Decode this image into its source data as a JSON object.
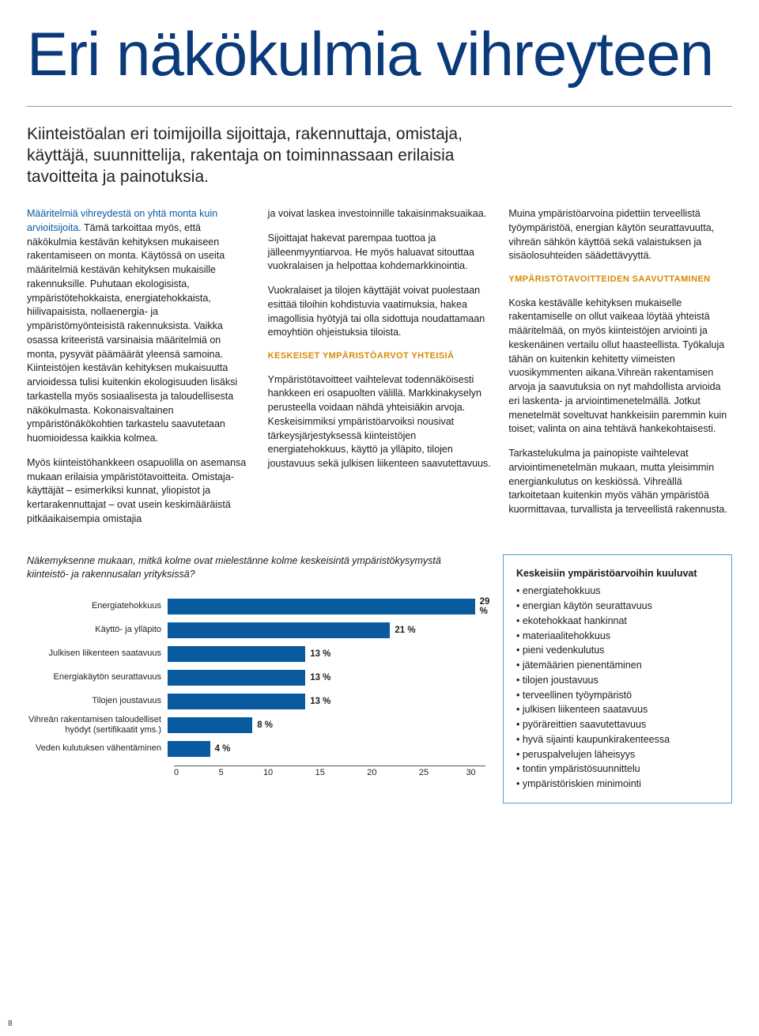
{
  "title": "Eri näkökulmia vihreyteen",
  "lead": "Kiinteistöalan eri toimijoilla sijoittaja, rakennuttaja, omistaja, käyttäjä, suunnittelija, rakentaja on toiminnassaan erilaisia tavoitteita ja painotuksia.",
  "col1": {
    "p1a": "Määritelmiä vihreydestä on yhtä monta kuin arvioitsijoita.",
    "p1b": " Tämä tarkoittaa myös, että näkökulmia kestävän kehityksen mukaiseen rakentamiseen on monta. Käytössä on useita määritelmiä kestävän kehityksen mukaisille rakennuksille. Puhutaan ekologisista, ympäristötehokkaista, energiatehokkaista, hiilivapaisista, nollaenergia- ja ympäristömyönteisistä rakennuksista. Vaikka osassa kriteeristä varsinaisia määritelmiä on monta, pysyvät päämäärät yleensä samoina. Kiinteistöjen kestävän kehityksen mukaisuutta arvioidessa tulisi kuitenkin ekologisuuden lisäksi tarkastella myös sosiaalisesta ja taloudellisesta näkökulmasta. Kokonaisvaltainen ympäristönäkökohtien tarkastelu saavutetaan huomioidessa kaikkia kolmea.",
    "p2": "Myös kiinteistöhankkeen osapuolilla on asemansa mukaan erilaisia ympäristötavoitteita. Omistaja-käyttäjät – esimerkiksi kunnat, yliopistot ja kertarakennuttajat – ovat usein keskimääräistä pitkäaikaisempia omistajia"
  },
  "col2": {
    "p1": "ja voivat laskea investoinnille takaisinmaksuaikaa.",
    "p2": "Sijoittajat hakevat parempaa tuottoa ja jälleenmyyntiarvoa. He myös haluavat sitouttaa vuokralaisen ja helpottaa kohdemarkkinointia.",
    "p3": "Vuokralaiset ja tilojen käyttäjät voivat puolestaan esittää tiloihin kohdistuvia vaatimuksia, hakea imagollisia hyötyjä tai olla sidottuja noudattamaan emoyhtiön ohjeistuksia tiloista.",
    "h1": "Keskeiset ympäristöarvot yhteisiä",
    "p4": "Ympäristötavoitteet vaihtelevat todennäköisesti hankkeen eri osapuolten välillä. Markkinakyselyn perusteella voidaan nähdä yhteisiäkin arvoja. Keskeisimmiksi ympäristöarvoiksi nousivat tärkeysjärjestyksessä kiinteistöjen energiatehokkuus, käyttö ja ylläpito, tilojen joustavuus sekä julkisen liikenteen saavutettavuus."
  },
  "col3": {
    "p1": "Muina ympäristöarvoina pidettiin terveellistä työympäristöä, energian käytön seurattavuutta, vihreän sähkön käyttöä sekä valaistuksen ja sisäolosuhteiden säädettävyyttä.",
    "h1": "Ympäristötavoitteiden saavuttaminen",
    "p2": "Koska kestävälle kehityksen mukaiselle rakentamiselle on ollut vaikeaa löytää yhteistä määritelmää, on myös kiinteistöjen arviointi ja keskenäinen vertailu ollut haasteellista.  Työkaluja tähän on kuitenkin kehitetty viimeisten vuosikymmenten aikana.Vihreän rakentamisen arvoja ja saavutuksia on nyt mahdollista arvioida eri laskenta- ja arviointimenetelmällä.  Jotkut menetelmät soveltuvat hankkeisiin paremmin kuin toiset; valinta on aina tehtävä hankekohtaisesti.",
    "p3": "Tarkastelukulma ja painopiste vaihtelevat arviointimenetelmän mukaan, mutta yleisimmin energiankulutus on keskiössä. Vihreällä tarkoitetaan kuitenkin myös vähän ympäristöä kuormittavaa, turvallista ja terveellistä rakennusta."
  },
  "chart": {
    "question": "Näkemyksenne mukaan, mitkä kolme ovat mielestänne kolme keskeisintä ympäristökysymystä kiinteistö- ja rakennusalan yrityksissä?",
    "type": "bar",
    "bar_color": "#0a5aa0",
    "text_color": "#1a1a1a",
    "xmax": 30,
    "xticks": [
      0,
      5,
      10,
      15,
      20,
      25,
      30
    ],
    "label_fontsize": 11,
    "value_fontsize": 11.5,
    "rows": [
      {
        "label": "Energiatehokkuus",
        "value": 29,
        "display": "29 %"
      },
      {
        "label": "Käyttö- ja ylläpito",
        "value": 21,
        "display": "21 %"
      },
      {
        "label": "Julkisen liikenteen saatavuus",
        "value": 13,
        "display": "13 %"
      },
      {
        "label": "Energiakäytön seurattavuus",
        "value": 13,
        "display": "13 %"
      },
      {
        "label": "Tilojen joustavuus",
        "value": 13,
        "display": "13 %"
      },
      {
        "label": "Vihreän rakentamisen taloudelliset hyödyt (sertifikaatit yms.)",
        "value": 8,
        "display": "8 %"
      },
      {
        "label": "Veden kulutuksen vähentäminen",
        "value": 4,
        "display": "4 %"
      }
    ]
  },
  "box": {
    "title": "Keskeisiin ympäristöarvoihin kuuluvat",
    "items": [
      "energiatehokkuus",
      "energian käytön seurattavuus",
      "ekotehokkaat hankinnat",
      "materiaalitehokkuus",
      "pieni vedenkulutus",
      "jätemäärien pienentäminen",
      "tilojen joustavuus",
      "terveellinen työympäristö",
      "julkisen liikenteen saatavuus",
      "pyöräreittien saavutettavuus",
      "hyvä sijainti kaupunkirakenteessa",
      "peruspalvelujen läheisyys",
      "tontin ympäristösuunnittelu",
      "ympäristöriskien minimointi"
    ]
  },
  "page_number": "8"
}
